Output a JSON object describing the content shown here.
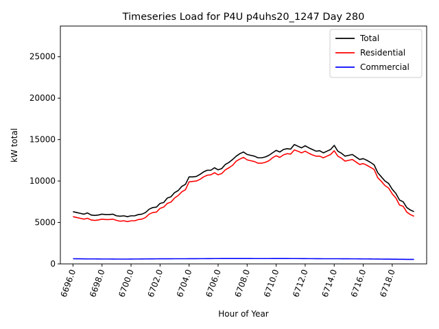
{
  "chart_data": {
    "type": "line",
    "title": "Timeseries Load for P4U p4uhs20_1247  Day 280",
    "xlabel": "Hour of Year",
    "ylabel": "kW total",
    "xlim": [
      6695.13,
      6720.37
    ],
    "ylim": [
      0,
      28700
    ],
    "xticks": [
      6696,
      6698,
      6700,
      6702,
      6704,
      6706,
      6708,
      6710,
      6712,
      6714,
      6716,
      6718
    ],
    "xtick_labels": [
      "6696.0",
      "6698.0",
      "6700.0",
      "6702.0",
      "6704.0",
      "6706.0",
      "6708.0",
      "6710.0",
      "6712.0",
      "6714.0",
      "6716.0",
      "6718.0"
    ],
    "yticks": [
      0,
      5000,
      10000,
      15000,
      20000,
      25000
    ],
    "ytick_labels": [
      "0",
      "5000",
      "10000",
      "15000",
      "20000",
      "25000"
    ],
    "legend_position": "top-right",
    "x": [
      6696.0,
      6696.25,
      6696.5,
      6696.75,
      6697.0,
      6697.25,
      6697.5,
      6697.75,
      6698.0,
      6698.25,
      6698.5,
      6698.75,
      6699.0,
      6699.25,
      6699.5,
      6699.75,
      6700.0,
      6700.25,
      6700.5,
      6700.75,
      6701.0,
      6701.25,
      6701.5,
      6701.75,
      6702.0,
      6702.25,
      6702.5,
      6702.75,
      6703.0,
      6703.25,
      6703.5,
      6703.75,
      6704.0,
      6704.25,
      6704.5,
      6704.75,
      6705.0,
      6705.25,
      6705.5,
      6705.75,
      6706.0,
      6706.25,
      6706.5,
      6706.75,
      6707.0,
      6707.25,
      6707.5,
      6707.75,
      6708.0,
      6708.25,
      6708.5,
      6708.75,
      6709.0,
      6709.25,
      6709.5,
      6709.75,
      6710.0,
      6710.25,
      6710.5,
      6710.75,
      6711.0,
      6711.25,
      6711.5,
      6711.75,
      6712.0,
      6712.25,
      6712.5,
      6712.75,
      6713.0,
      6713.25,
      6713.5,
      6713.75,
      6714.0,
      6714.25,
      6714.5,
      6714.75,
      6715.0,
      6715.25,
      6715.5,
      6715.75,
      6716.0,
      6716.25,
      6716.5,
      6716.75,
      6717.0,
      6717.25,
      6717.5,
      6717.75,
      6718.0,
      6718.25,
      6718.5,
      6718.75,
      6719.0,
      6719.25,
      6719.5
    ],
    "series": [
      {
        "name": "Total",
        "color": "#000000",
        "values": [
          6300,
          6200,
          6100,
          6000,
          6150,
          5900,
          5850,
          5900,
          6000,
          5950,
          5950,
          6000,
          5800,
          5750,
          5800,
          5700,
          5800,
          5800,
          5950,
          6000,
          6200,
          6600,
          6800,
          6850,
          7300,
          7400,
          7950,
          8100,
          8600,
          8850,
          9350,
          9600,
          10500,
          10500,
          10550,
          10800,
          11100,
          11300,
          11300,
          11600,
          11350,
          11500,
          12000,
          12250,
          12600,
          13000,
          13300,
          13500,
          13200,
          13100,
          13000,
          12800,
          12800,
          12900,
          13100,
          13400,
          13700,
          13500,
          13800,
          13900,
          13850,
          14400,
          14200,
          14000,
          14250,
          14000,
          13800,
          13600,
          13650,
          13400,
          13600,
          13800,
          14300,
          13600,
          13350,
          13000,
          13100,
          13200,
          12900,
          12600,
          12700,
          12500,
          12250,
          11950,
          11000,
          10500,
          10000,
          9700,
          9000,
          8500,
          7700,
          7500,
          6800,
          6500,
          6300
        ]
      },
      {
        "name": "Residential",
        "color": "#ff0000",
        "values": [
          5700,
          5600,
          5500,
          5400,
          5500,
          5300,
          5250,
          5300,
          5400,
          5350,
          5350,
          5400,
          5250,
          5150,
          5200,
          5100,
          5200,
          5200,
          5350,
          5400,
          5600,
          6000,
          6200,
          6250,
          6700,
          6850,
          7300,
          7450,
          7950,
          8250,
          8700,
          8950,
          9900,
          9950,
          10000,
          10200,
          10500,
          10700,
          10750,
          11000,
          10750,
          10900,
          11350,
          11600,
          11900,
          12400,
          12650,
          12850,
          12550,
          12450,
          12350,
          12150,
          12150,
          12250,
          12450,
          12800,
          13050,
          12850,
          13150,
          13300,
          13250,
          13750,
          13600,
          13400,
          13600,
          13350,
          13150,
          13000,
          13000,
          12800,
          13000,
          13200,
          13650,
          13000,
          12750,
          12400,
          12500,
          12600,
          12300,
          12000,
          12100,
          11900,
          11650,
          11400,
          10400,
          9950,
          9450,
          9150,
          8450,
          7950,
          7100,
          6950,
          6250,
          5950,
          5750
        ]
      },
      {
        "name": "Commercial",
        "color": "#0000ff",
        "values": [
          620,
          615,
          615,
          605,
          600,
          600,
          600,
          595,
          590,
          590,
          590,
          585,
          580,
          580,
          580,
          580,
          585,
          590,
          590,
          595,
          600,
          605,
          605,
          610,
          615,
          615,
          615,
          615,
          620,
          620,
          620,
          620,
          625,
          625,
          625,
          630,
          630,
          635,
          635,
          640,
          640,
          645,
          650,
          650,
          650,
          650,
          650,
          650,
          645,
          645,
          640,
          640,
          640,
          640,
          640,
          645,
          645,
          645,
          645,
          645,
          640,
          640,
          640,
          635,
          635,
          630,
          630,
          625,
          625,
          620,
          620,
          620,
          620,
          620,
          615,
          615,
          615,
          610,
          610,
          605,
          600,
          600,
          595,
          590,
          585,
          580,
          575,
          570,
          565,
          560,
          555,
          550,
          545,
          545,
          540
        ]
      }
    ]
  }
}
